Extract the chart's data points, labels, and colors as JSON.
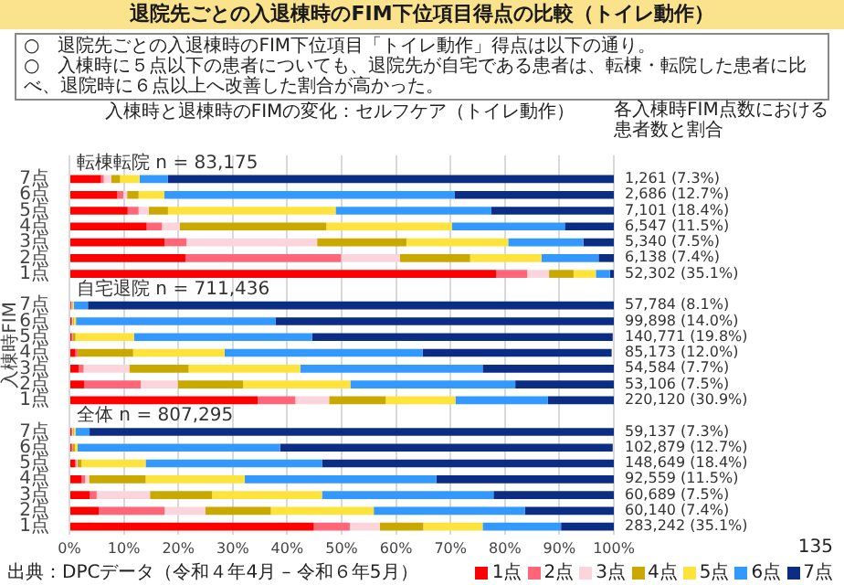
{
  "chart_data": {
    "type": "bar",
    "orientation": "horizontal",
    "stacked": true,
    "title": "退院先ごとの入退棟時のFIM下位項目得点の比較（トイレ動作）",
    "subtitle": "入棟時と退棟時のFIMの変化：セルフケア（トイレ動作）",
    "ylabel": "入棟時FIM",
    "categories": [
      "転棟転院 n = 83,175",
      "7点",
      "6点",
      "5点",
      "4点",
      "3点",
      "2点",
      "1点",
      "自宅退院 n = 711,436",
      "7点",
      "6点",
      "5点",
      "4点",
      "3点",
      "2点",
      "1点",
      "全体 n = 807,295",
      "7点",
      "6点",
      "5点",
      "4点",
      "3点",
      "2点",
      "1点"
    ],
    "series": [
      {
        "name": "1点",
        "color": "#ff0000",
        "values": [
          null,
          5.8,
          8.8,
          10.7,
          14.2,
          17.5,
          21.3,
          78.4,
          null,
          0.3,
          0.4,
          0.4,
          1.1,
          1.7,
          2.7,
          34.6,
          null,
          0.4,
          0.4,
          1.0,
          2.2,
          3.7,
          5.4,
          44.9
        ]
      },
      {
        "name": "2点",
        "color": "#ff6677",
        "values": [
          null,
          0.5,
          1.1,
          2.0,
          2.8,
          4.0,
          28.6,
          5.7,
          null,
          0.1,
          0.1,
          0.2,
          0.4,
          0.9,
          10.4,
          6.9,
          null,
          0.1,
          0.2,
          0.3,
          0.7,
          1.3,
          12.1,
          6.6
        ]
      },
      {
        "name": "3点",
        "color": "#fcd5dc",
        "values": [
          null,
          1.4,
          0.7,
          1.9,
          3.3,
          24.0,
          10.8,
          4.0,
          null,
          0.1,
          0.1,
          null,
          null,
          8.4,
          6.8,
          6.2,
          null,
          0.1,
          null,
          0.2,
          0.7,
          9.8,
          7.5,
          5.5
        ]
      },
      {
        "name": "4点",
        "color": "#c9a800",
        "values": [
          null,
          1.6,
          2.1,
          3.5,
          26.9,
          16.4,
          12.9,
          4.5,
          null,
          0.1,
          0.2,
          0.5,
          10.2,
          10.9,
          12.0,
          10.4,
          null,
          0.2,
          0.4,
          0.7,
          10.4,
          11.4,
          12.0,
          8.0
        ]
      },
      {
        "name": "5点",
        "color": "#ffe33d",
        "values": [
          null,
          3.6,
          4.7,
          30.8,
          23.1,
          18.7,
          13.1,
          4.1,
          null,
          0.2,
          0.4,
          10.8,
          16.8,
          20.5,
          19.7,
          12.8,
          null,
          0.3,
          0.5,
          11.8,
          18.2,
          20.2,
          18.9,
          10.9
        ]
      },
      {
        "name": "6点",
        "color": "#3399ff",
        "values": [
          null,
          5.2,
          53.4,
          28.6,
          20.7,
          13.8,
          10.5,
          2.6,
          null,
          2.6,
          36.7,
          32.7,
          36.4,
          33.5,
          30.3,
          17.0,
          null,
          2.6,
          37.2,
          32.4,
          35.2,
          31.5,
          27.8,
          14.4
        ]
      },
      {
        "name": "7点",
        "color": "#0c2d84",
        "values": [
          null,
          81.9,
          29.2,
          22.5,
          9.0,
          5.6,
          2.8,
          0.7,
          null,
          96.6,
          62.1,
          55.2,
          34.7,
          24.1,
          18.1,
          12.1,
          null,
          96.3,
          61.1,
          53.6,
          32.6,
          22.1,
          16.3,
          9.7
        ]
      }
    ],
    "totals": [
      null,
      "1,261 (7.3%)",
      "2,686 (12.7%)",
      "7,101 (18.4%)",
      "6,547 (11.5%)",
      "5,340 (7.5%)",
      "6,138 (7.4%)",
      "52,302 (35.1%)",
      null,
      "57,784 (8.1%)",
      "99,898 (14.0%)",
      "140,771 (19.8%)",
      "85,173 (12.0%)",
      "54,584 (7.7%)",
      "53,106 (7.5%)",
      "220,120 (30.9%)",
      null,
      "59,137 (7.3%)",
      "102,879 (12.7%)",
      "148,649 (18.4%)",
      "92,559 (11.5%)",
      "60,689 (7.5%)",
      "60,140 (7.4%)",
      "283,242 (35.1%)"
    ],
    "xlim": [
      0,
      100
    ],
    "xticks": [
      {
        "value": 0,
        "label": "0%"
      },
      {
        "value": 10,
        "label": "10%"
      },
      {
        "value": 20,
        "label": "20%"
      },
      {
        "value": 30,
        "label": "30%"
      },
      {
        "value": 40,
        "label": "40%"
      },
      {
        "value": 50,
        "label": "50%"
      },
      {
        "value": 60,
        "label": "60%"
      },
      {
        "value": 70,
        "label": "70%"
      },
      {
        "value": 80,
        "label": "80%"
      },
      {
        "value": 90,
        "label": "90%"
      },
      {
        "value": 100,
        "label": "100%"
      }
    ],
    "grid": "x",
    "legend": "bottom",
    "annotations": [
      "○　退院先ごとの入退棟時のFIM下位項目「トイレ動作」得点は以下の通り。",
      "○　入棟時に５点以下の患者についても、退院先が自宅である患者は、転棟・転院した患者に比べ、退院時に６点以上へ改善した割合が高かった。",
      "各入棟時FIM点数における患者数と割合",
      "出典：DPCデータ（令和４年4月 – 令和６年5月）",
      "135"
    ]
  }
}
